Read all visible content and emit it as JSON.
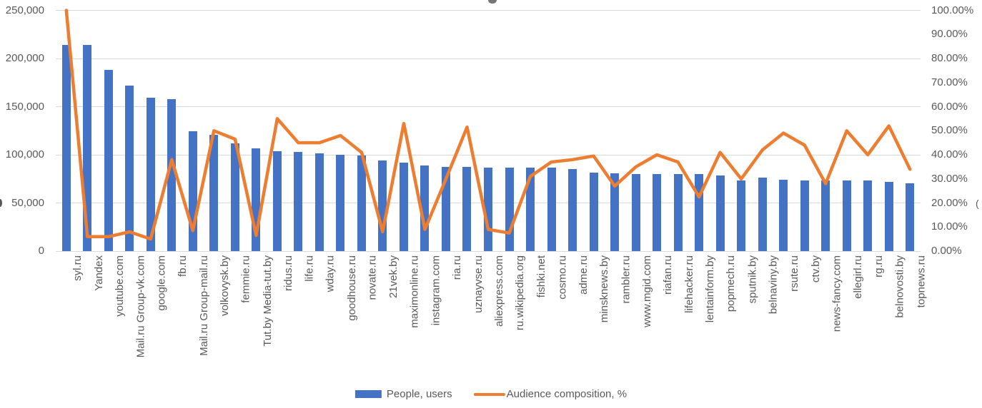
{
  "chart_data": {
    "type": "bar",
    "subtype": "combo-bar-line-dual-axis",
    "categories": [
      "syl.ru",
      "Yandex",
      "youtube.com",
      "Mail.ru Group-vk.com",
      "google.com",
      "fb.ru",
      "Mail.ru Group-mail.ru",
      "volkovysk.by",
      "femmie.ru",
      "Tut.by Media-tut.by",
      "ridus.ru",
      "life.ru",
      "wday.ru",
      "goodhouse.ru",
      "novate.ru",
      "21vek.by",
      "maximonline.ru",
      "instagram.com",
      "ria.ru",
      "uznayvse.ru",
      "aliexpress.com",
      "ru.wikipedia.org",
      "fishki.net",
      "cosmo.ru",
      "adme.ru",
      "minsknews.by",
      "rambler.ru",
      "www.mgid.com",
      "riafan.ru",
      "lifehacker.ru",
      "lentainform.by",
      "popmech.ru",
      "sputnik.by",
      "belnaviny.by",
      "rsute.ru",
      "ctv.by",
      "news-fancy.com",
      "ellegirl.ru",
      "rg.ru",
      "belnovosti.by",
      "topnews.ru"
    ],
    "series": [
      {
        "name": "People, users",
        "type": "bar",
        "axis": "left",
        "color": "#4472c4",
        "values": [
          214000,
          214000,
          188500,
          171500,
          159000,
          158000,
          124500,
          120500,
          111500,
          106500,
          104000,
          103000,
          101500,
          100000,
          99000,
          94000,
          92000,
          89000,
          87500,
          87500,
          87000,
          87000,
          87000,
          86500,
          85500,
          81500,
          80500,
          80000,
          80000,
          80000,
          80000,
          78500,
          73500,
          76500,
          74000,
          73000,
          73500,
          73500,
          73000,
          71500,
          70500
        ]
      },
      {
        "name": "Audience composition, %",
        "type": "line",
        "axis": "right",
        "color": "#ed7d31",
        "values": [
          100,
          6,
          6,
          8,
          5,
          38,
          8.5,
          50,
          46.5,
          6.5,
          55,
          45,
          45,
          48,
          41,
          8,
          53,
          9,
          30,
          51.5,
          9,
          7.5,
          31,
          37,
          38,
          39.5,
          27,
          35,
          40,
          37,
          22.5,
          41,
          30,
          42,
          49,
          44,
          28,
          50,
          40,
          52,
          34
        ]
      }
    ],
    "left_axis": {
      "min": 0,
      "max": 250000,
      "ticks": [
        {
          "label": "250,000",
          "value": 250000
        },
        {
          "label": "200,000",
          "value": 200000
        },
        {
          "label": "150,000",
          "value": 150000
        },
        {
          "label": "100,000",
          "value": 100000
        },
        {
          "label": "50,000",
          "value": 50000
        },
        {
          "label": "0",
          "value": 0
        }
      ]
    },
    "right_axis": {
      "min": 0,
      "max": 100,
      "ticks": [
        {
          "label": "100.00%",
          "value": 100
        },
        {
          "label": "90.00%",
          "value": 90
        },
        {
          "label": "80.00%",
          "value": 80
        },
        {
          "label": "70.00%",
          "value": 70
        },
        {
          "label": "60.00%",
          "value": 60
        },
        {
          "label": "50.00%",
          "value": 50
        },
        {
          "label": "40.00%",
          "value": 40
        },
        {
          "label": "30.00%",
          "value": 30
        },
        {
          "label": "20.00%",
          "value": 20
        },
        {
          "label": "10.00%",
          "value": 10
        },
        {
          "label": "0.00%",
          "value": 0
        }
      ]
    },
    "grid": true,
    "gridline_color": "#d9d9d9",
    "legend_position": "bottom",
    "legend": [
      "People, users",
      "Audience composition, %"
    ]
  },
  "edge_artifacts": {
    "clipped_right_text": "("
  }
}
